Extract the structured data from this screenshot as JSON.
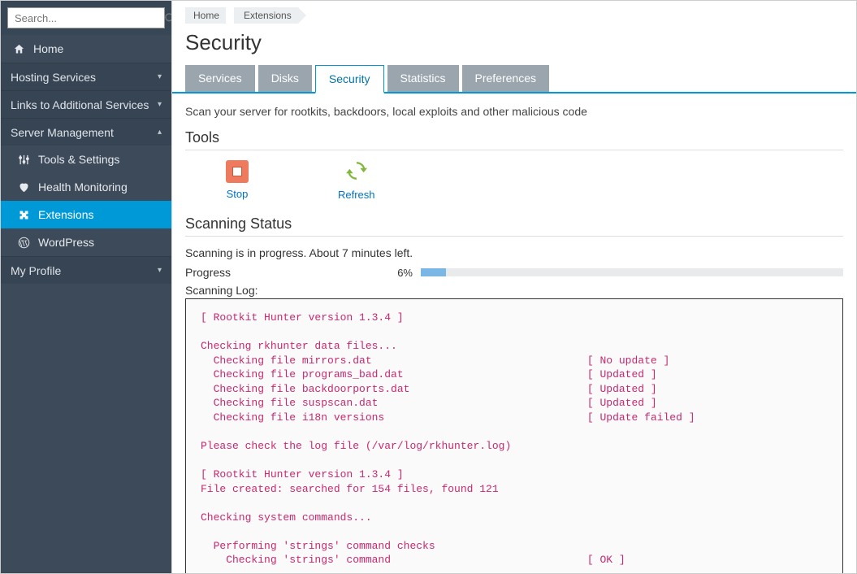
{
  "search": {
    "placeholder": "Search..."
  },
  "sidebar": {
    "home": "Home",
    "sections": {
      "hosting": "Hosting Services",
      "links": "Links to Additional Services",
      "server": "Server Management",
      "profile": "My Profile"
    },
    "server_items": [
      {
        "label": "Tools & Settings",
        "icon": "sliders"
      },
      {
        "label": "Health Monitoring",
        "icon": "heart"
      },
      {
        "label": "Extensions",
        "icon": "puzzle",
        "selected": true
      },
      {
        "label": "WordPress",
        "icon": "wordpress"
      }
    ]
  },
  "breadcrumb": [
    "Home",
    "Extensions"
  ],
  "page_title": "Security",
  "tabs": [
    {
      "label": "Services",
      "active": false
    },
    {
      "label": "Disks",
      "active": false
    },
    {
      "label": "Security",
      "active": true
    },
    {
      "label": "Statistics",
      "active": false
    },
    {
      "label": "Preferences",
      "active": false
    }
  ],
  "description": "Scan your server for rootkits, backdoors, local exploits and other malicious code",
  "tools_heading": "Tools",
  "tools": {
    "stop": "Stop",
    "refresh": "Refresh"
  },
  "status_heading": "Scanning Status",
  "status_text": "Scanning is in progress. About 7 minutes left.",
  "progress": {
    "label": "Progress",
    "percent_text": "6%",
    "percent_value": 6
  },
  "log_label": "Scanning Log:",
  "log_text": "[ Rootkit Hunter version 1.3.4 ]\n\nChecking rkhunter data files...\n  Checking file mirrors.dat                                  [ No update ]\n  Checking file programs_bad.dat                             [ Updated ]\n  Checking file backdoorports.dat                            [ Updated ]\n  Checking file suspscan.dat                                 [ Updated ]\n  Checking file i18n versions                                [ Update failed ]\n\nPlease check the log file (/var/log/rkhunter.log)\n\n[ Rootkit Hunter version 1.3.4 ]\nFile created: searched for 154 files, found 121\n\nChecking system commands...\n\n  Performing 'strings' command checks\n    Checking 'strings' command                               [ OK ]",
  "colors": {
    "sidebar_bg": "#3c4a5a",
    "selected_bg": "#0099d8",
    "tab_inactive_bg": "#9aa5ae",
    "tab_active_border": "#0099d8",
    "link_color": "#0073c8",
    "stop_bg": "#ef7b5f",
    "refresh_color": "#80b83b",
    "progress_bg": "#e8eaec",
    "progress_fill": "#7bb7e5",
    "log_text_color": "#c9286e"
  }
}
